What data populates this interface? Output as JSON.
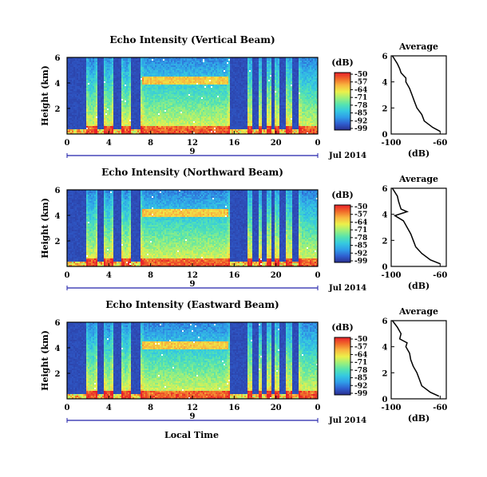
{
  "colors": {
    "axis": "#000000",
    "date_axis": "#2222aa",
    "missing": "#ffffff"
  },
  "colorbar": {
    "unit": "(dB)",
    "ticks": [
      "-50",
      "-57",
      "-64",
      "-71",
      "-78",
      "-85",
      "-92",
      "-99"
    ],
    "stops": [
      "#2a2f8f",
      "#2f5fd0",
      "#2f9ee8",
      "#35c9e0",
      "#55e3b0",
      "#9ef07a",
      "#ecf04a",
      "#f8b840",
      "#f06a2a",
      "#e8202a"
    ]
  },
  "shared": {
    "xlabel": "Local Time",
    "x_ticks": [
      "0",
      "4",
      "8",
      "12",
      "16",
      "20",
      "0"
    ],
    "x_range_hours": [
      0,
      24
    ],
    "date_tick": "9",
    "date_label": "Jul 2014",
    "ylabel": "Height (km)",
    "height_range_km": [
      0,
      6
    ],
    "y_ticks": [
      "6",
      "4",
      "2"
    ],
    "avg_title": "Average",
    "avg_xlabel": "(dB)",
    "avg_x_ticks": [
      "-100",
      "-60"
    ],
    "avg_x_range": [
      -100,
      -55
    ],
    "avg_y_ticks": [
      "6",
      "4",
      "2",
      "0"
    ]
  },
  "chart_data": [
    {
      "type": "heatmap",
      "title": "Echo Intensity (Vertical Beam)",
      "clear_intervals_h": [
        [
          0,
          1.8
        ],
        [
          2.9,
          3.5
        ],
        [
          4.4,
          5.2
        ],
        [
          6.1,
          7.1
        ],
        [
          15.6,
          17.3
        ],
        [
          17.8,
          18.3
        ],
        [
          18.7,
          19.1
        ],
        [
          19.5,
          19.9
        ],
        [
          20.4,
          21.0
        ],
        [
          21.6,
          22.2
        ]
      ],
      "bright_layer": {
        "start_h": 7.2,
        "end_h": 15.5,
        "height_km": 4.2
      },
      "average_profile": {
        "height_km": [
          6,
          5.4,
          5.0,
          4.7,
          4.3,
          4.0,
          3.5,
          3.0,
          2.5,
          2.0,
          1.5,
          1.0,
          0.5,
          0.2
        ],
        "db": [
          -99,
          -95,
          -93,
          -92,
          -88,
          -88,
          -85,
          -83,
          -81,
          -79,
          -75,
          -73,
          -66,
          -60
        ]
      }
    },
    {
      "type": "heatmap",
      "title": "Echo Intensity (Northward Beam)",
      "clear_intervals_h": [
        [
          0,
          1.8
        ],
        [
          2.9,
          3.5
        ],
        [
          4.4,
          5.2
        ],
        [
          6.1,
          7.1
        ],
        [
          15.6,
          17.3
        ],
        [
          17.8,
          18.3
        ],
        [
          18.7,
          19.1
        ],
        [
          19.5,
          19.9
        ],
        [
          20.4,
          21.0
        ],
        [
          21.6,
          22.2
        ]
      ],
      "bright_layer": {
        "start_h": 7.2,
        "end_h": 15.5,
        "height_km": 4.2
      },
      "average_profile": {
        "height_km": [
          6,
          5.4,
          5.0,
          4.7,
          4.4,
          4.2,
          3.9,
          3.5,
          3.0,
          2.5,
          2.0,
          1.5,
          1.0,
          0.5,
          0.2
        ],
        "db": [
          -99,
          -95,
          -94,
          -93,
          -92,
          -87,
          -97,
          -90,
          -87,
          -84,
          -82,
          -80,
          -75,
          -68,
          -60
        ]
      }
    },
    {
      "type": "heatmap",
      "title": "Echo Intensity (Eastward Beam)",
      "clear_intervals_h": [
        [
          0,
          1.8
        ],
        [
          2.9,
          3.5
        ],
        [
          4.4,
          5.2
        ],
        [
          6.1,
          7.1
        ],
        [
          15.6,
          17.3
        ],
        [
          17.8,
          18.3
        ],
        [
          18.7,
          19.1
        ],
        [
          19.5,
          19.9
        ],
        [
          20.4,
          21.0
        ],
        [
          21.6,
          22.2
        ]
      ],
      "bright_layer": {
        "start_h": 7.2,
        "end_h": 15.5,
        "height_km": 4.2
      },
      "average_profile": {
        "height_km": [
          6,
          5.5,
          5.0,
          4.6,
          4.3,
          4.0,
          3.5,
          3.0,
          2.5,
          2.0,
          1.5,
          1.0,
          0.5,
          0.2
        ],
        "db": [
          -99,
          -95,
          -92,
          -93,
          -87,
          -88,
          -85,
          -84,
          -82,
          -79,
          -77,
          -75,
          -68,
          -61
        ]
      }
    }
  ]
}
